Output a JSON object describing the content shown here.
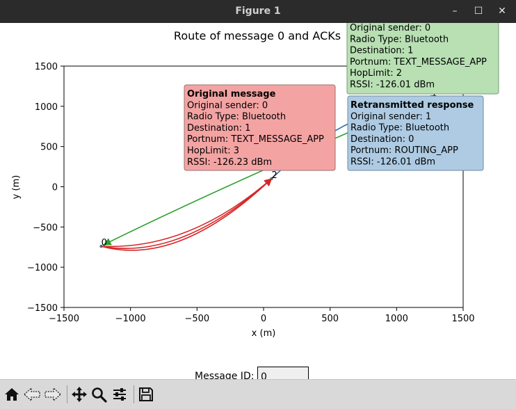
{
  "window": {
    "title": "Figure 1",
    "controls": {
      "minimize": "–",
      "maximize": "☐",
      "close": "✕"
    }
  },
  "toolbar": {
    "buttons": [
      "home-icon",
      "back-icon",
      "forward-icon",
      "pan-icon",
      "zoom-icon",
      "configure-subplots-icon",
      "save-icon"
    ]
  },
  "message_id": {
    "label": "Message ID:",
    "value": "0"
  },
  "chart_data": {
    "type": "scatter",
    "title": "Route of message 0 and ACKs",
    "xlabel": "x (m)",
    "ylabel": "y (m)",
    "xlim": [
      -1500,
      1500
    ],
    "ylim": [
      -1500,
      1500
    ],
    "xticks": [
      -1500,
      -1000,
      -500,
      0,
      500,
      1000,
      1500
    ],
    "yticks": [
      1500,
      1000,
      500,
      0,
      -500,
      -1000,
      -1500
    ],
    "xtick_labels": [
      "−1500",
      "−1000",
      "−500",
      "0",
      "500",
      "1000",
      "1500"
    ],
    "ytick_labels": [
      "1500",
      "1000",
      "500",
      "0",
      "−500",
      "−1000",
      "−1500"
    ],
    "grid": false,
    "nodes": [
      {
        "id": "0",
        "x": -1220,
        "y": -740
      },
      {
        "id": "1",
        "x": 1260,
        "y": 1120
      },
      {
        "id": "2",
        "x": 60,
        "y": 100
      }
    ],
    "routes": [
      {
        "from": [
          -1220,
          -740
        ],
        "to": [
          60,
          100
        ],
        "control": [
          -640,
          -1000
        ],
        "color": "#d62728",
        "arrow": true
      },
      {
        "from": [
          -1220,
          -740
        ],
        "to": [
          60,
          100
        ],
        "control": [
          -620,
          -920
        ],
        "color": "#d62728",
        "arrow": true
      },
      {
        "from": [
          -1220,
          -740
        ],
        "to": [
          60,
          100
        ],
        "control": [
          -560,
          -790
        ],
        "color": "#d62728",
        "arrow": true
      },
      {
        "from": [
          60,
          100
        ],
        "to": [
          1260,
          1120
        ],
        "control": [
          580,
          930
        ],
        "color": "#3a70a8",
        "arrow": false
      },
      {
        "from": [
          1260,
          1120
        ],
        "to": [
          -1200,
          -720
        ],
        "control": [
          -320,
          0
        ],
        "color": "#2ca02c",
        "arrow": true
      }
    ],
    "annotations": [
      {
        "name": "original-message-box",
        "heading": "Original message",
        "lines": [
          "Original sender: 0",
          "Radio Type: Bluetooth",
          "Destination: 1",
          "Portnum: TEXT_MESSAGE_APP",
          "HopLimit: 3",
          "RSSI: -126.23 dBm"
        ],
        "color": "#f4a3a3",
        "border": "#9a7070"
      },
      {
        "name": "ack-box",
        "heading": "",
        "lines": [
          "Original sender: 0",
          "Radio Type: Bluetooth",
          "Destination: 1",
          "Portnum: TEXT_MESSAGE_APP",
          "HopLimit: 2",
          "RSSI: -126.01 dBm"
        ],
        "color": "#b8e0b3",
        "border": "#7a9c76"
      },
      {
        "name": "retransmitted-response-box",
        "heading": "Retransmitted response",
        "lines": [
          "Original sender: 1",
          "Radio Type: Bluetooth",
          "Destination: 0",
          "Portnum: ROUTING_APP",
          "RSSI: -126.01 dBm"
        ],
        "color": "#aecbe3",
        "border": "#6f8aa0"
      }
    ]
  }
}
